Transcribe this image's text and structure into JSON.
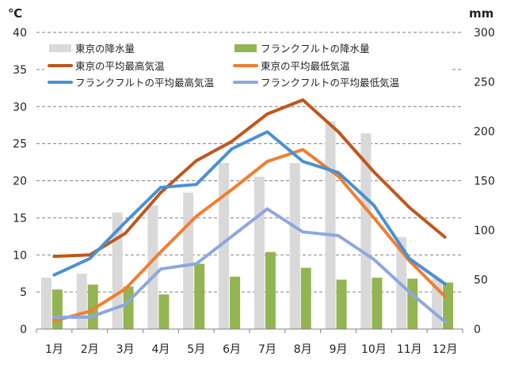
{
  "chart_data": {
    "type": "bar+line",
    "categories": [
      "1月",
      "2月",
      "3月",
      "4月",
      "5月",
      "6月",
      "7月",
      "8月",
      "9月",
      "10月",
      "11月",
      "12月"
    ],
    "y_left": {
      "unit": "℃",
      "lim": [
        0,
        40
      ],
      "ticks": [
        "0",
        "5",
        "10",
        "15",
        "20",
        "25",
        "30",
        "35",
        "40"
      ]
    },
    "y_right": {
      "unit": "mm",
      "lim": [
        0,
        300
      ],
      "ticks": [
        "0",
        "50",
        "100",
        "150",
        "200",
        "250",
        "300"
      ]
    },
    "bar_series": [
      {
        "name": "東京の降水量",
        "axis": "right",
        "color": "#d9d9d9",
        "values": [
          52,
          56,
          118,
          125,
          138,
          168,
          154,
          168,
          210,
          198,
          93,
          51
        ]
      },
      {
        "name": "フランクフルトの降水量",
        "axis": "right",
        "color": "#92b552",
        "values": [
          40,
          45,
          43,
          35,
          66,
          53,
          78,
          62,
          50,
          52,
          51,
          47
        ]
      }
    ],
    "line_series": [
      {
        "name": "東京の平均最高気温",
        "axis": "left",
        "color": "#c0561d",
        "values": [
          9.8,
          10.0,
          12.9,
          18.4,
          22.7,
          25.3,
          29.0,
          30.9,
          26.6,
          21.2,
          16.4,
          12.4
        ]
      },
      {
        "name": "東京の平均最低気温",
        "axis": "left",
        "color": "#f07e30",
        "values": [
          1.1,
          2.4,
          5.4,
          10.4,
          15.2,
          18.8,
          22.6,
          24.2,
          20.6,
          15.0,
          9.2,
          4.4
        ]
      },
      {
        "name": "フランクフルトの平均最高気温",
        "axis": "left",
        "color": "#4a90d2",
        "values": [
          7.3,
          9.5,
          14.4,
          19.1,
          19.5,
          24.3,
          26.6,
          22.6,
          21.1,
          16.7,
          9.5,
          6.1
        ]
      },
      {
        "name": "フランクフルトの平均最低気温",
        "axis": "left",
        "color": "#8ea7df",
        "values": [
          1.6,
          1.6,
          3.3,
          8.1,
          8.8,
          12.5,
          16.2,
          13.1,
          12.6,
          9.4,
          5.0,
          1.0
        ]
      }
    ],
    "grid": {
      "horizontal": true,
      "style": "dashed"
    },
    "legend": {
      "position": "top-inside",
      "columns": 2
    }
  }
}
